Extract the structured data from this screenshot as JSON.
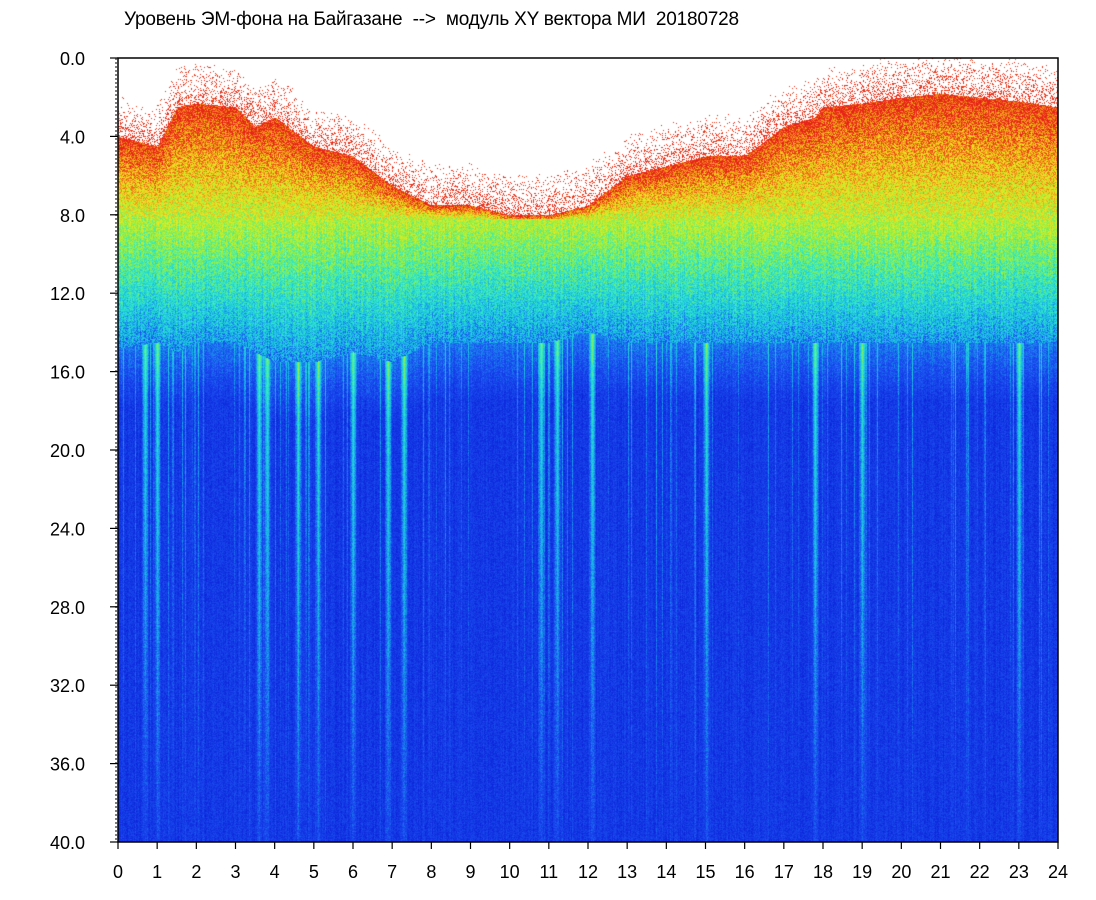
{
  "chart_data": {
    "type": "heatmap",
    "title": "Уровень ЭМ-фона на Байгазане  -->  модуль XY вектора МИ  20180728",
    "xlabel": "",
    "ylabel": "",
    "xlim": [
      0,
      24
    ],
    "ylim": [
      40.0,
      0.0
    ],
    "x_axis_position": "bottom",
    "y_axis_direction": "downward",
    "x_ticks": [
      "0",
      "1",
      "2",
      "3",
      "4",
      "5",
      "6",
      "7",
      "8",
      "9",
      "10",
      "11",
      "12",
      "13",
      "14",
      "15",
      "16",
      "17",
      "18",
      "19",
      "20",
      "21",
      "22",
      "23",
      "24"
    ],
    "y_ticks": [
      "0.0",
      "4.0",
      "8.0",
      "12.0",
      "16.0",
      "20.0",
      "24.0",
      "28.0",
      "32.0",
      "36.0",
      "40.0"
    ],
    "grid": false,
    "legend": "none",
    "colormap": [
      "#0a1fd6",
      "#1a4cf0",
      "#19b6e8",
      "#2ee8c8",
      "#9af03a",
      "#f0e820",
      "#f08a18",
      "#e8201a"
    ],
    "activity_profile": {
      "x_hours": [
        0.0,
        1.0,
        1.5,
        2.0,
        3.0,
        3.5,
        4.0,
        5.0,
        6.0,
        7.0,
        8.0,
        9.0,
        10.0,
        11.0,
        12.0,
        13.0,
        14.0,
        15.0,
        16.0,
        17.0,
        17.8,
        18.0,
        19.0,
        20.0,
        21.0,
        22.0,
        23.0,
        24.0
      ],
      "red_top": [
        4.0,
        4.5,
        2.5,
        2.3,
        2.5,
        3.5,
        3.0,
        4.5,
        5.0,
        6.5,
        7.5,
        7.5,
        8.0,
        8.0,
        7.5,
        6.0,
        5.5,
        5.0,
        5.0,
        3.5,
        3.0,
        2.5,
        2.3,
        2.0,
        1.8,
        2.0,
        2.2,
        2.5
      ],
      "noise_bottom": [
        14.8,
        14.5,
        15.0,
        14.5,
        14.5,
        15.0,
        15.5,
        15.5,
        15.0,
        15.5,
        14.5,
        14.5,
        14.5,
        14.5,
        14.0,
        14.5,
        14.5,
        14.5,
        14.5,
        14.5,
        14.5,
        14.5,
        14.5,
        14.5,
        14.5,
        14.5,
        14.5,
        14.5
      ]
    },
    "vertical_spikes_x": [
      0.7,
      1.0,
      3.6,
      3.8,
      4.6,
      5.1,
      6.0,
      6.9,
      7.3,
      10.8,
      11.2,
      12.1,
      15.0,
      17.8,
      19.0,
      23.0
    ]
  }
}
